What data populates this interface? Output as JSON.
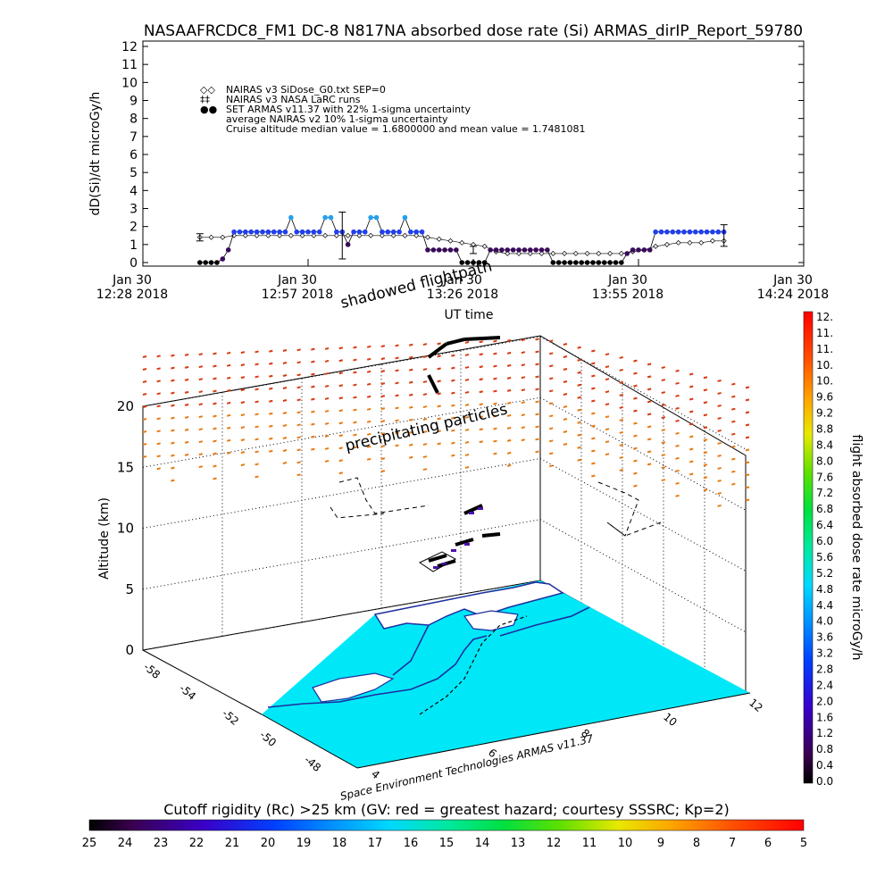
{
  "title": "NASAAFRCDC8_FM1 DC-8   N817NA absorbed dose rate (Si) ARMAS_dirIP_Report_59780",
  "chart_data": [
    {
      "type": "scatter",
      "ylabel": "dD(Si)/dt microGy/h",
      "xlabel": "UT time",
      "ylim": [
        0,
        12
      ],
      "yticks": [
        "0",
        "1",
        "2",
        "3",
        "4",
        "5",
        "6",
        "7",
        "8",
        "9",
        "10",
        "11",
        "12"
      ],
      "xticks": [
        {
          "top": "Jan 30",
          "bottom": "12:28 2018"
        },
        {
          "top": "Jan 30",
          "bottom": "12:57 2018"
        },
        {
          "top": "Jan 30",
          "bottom": "13:26 2018"
        },
        {
          "top": "Jan 30",
          "bottom": "13:55 2018"
        },
        {
          "top": "Jan 30",
          "bottom": "14:24 2018"
        }
      ],
      "xlim_minutes": [
        0,
        116
      ],
      "legend": [
        {
          "symbol": "◇◇",
          "text": "NAIRAS v3 SiDose_G0.txt SEP=0"
        },
        {
          "symbol": "‡‡",
          "text": "NAIRAS v3 NASA LaRC runs"
        },
        {
          "symbol": "●●",
          "text": "SET ARMAS v11.37 with 22% 1-sigma uncertainty"
        },
        {
          "symbol": "",
          "text": "average NAIRAS v2 10% 1-sigma uncertainty"
        },
        {
          "symbol": "",
          "text": "Cruise altitude median value = 1.6800000 and mean value = 1.7481081"
        }
      ],
      "series": [
        {
          "name": "NAIRAS v3 SiDose_G0.txt SEP=0",
          "x": [
            10,
            12,
            14,
            16,
            18,
            20,
            22,
            24,
            26,
            28,
            30,
            32,
            34,
            36,
            38,
            40,
            42,
            44,
            46,
            48,
            50,
            52,
            54,
            56,
            58,
            60,
            62,
            64,
            66,
            68,
            70,
            72,
            74,
            76,
            78,
            80,
            82,
            84,
            86,
            88,
            90,
            92,
            94,
            96,
            98,
            100,
            102
          ],
          "values": [
            1.4,
            1.4,
            1.4,
            1.5,
            1.5,
            1.5,
            1.5,
            1.5,
            1.5,
            1.5,
            1.5,
            1.5,
            1.5,
            1.5,
            1.5,
            1.5,
            1.5,
            1.5,
            1.5,
            1.5,
            1.4,
            1.3,
            1.2,
            1.1,
            1.0,
            0.9,
            0.6,
            0.5,
            0.5,
            0.5,
            0.5,
            0.5,
            0.5,
            0.5,
            0.5,
            0.5,
            0.5,
            0.5,
            0.6,
            0.7,
            0.9,
            1.0,
            1.1,
            1.1,
            1.1,
            1.2,
            1.2
          ]
        },
        {
          "name": "SET ARMAS v11.37",
          "x": [
            10,
            11,
            12,
            13,
            14,
            15,
            16,
            17,
            18,
            19,
            20,
            21,
            22,
            23,
            24,
            25,
            26,
            27,
            28,
            29,
            30,
            31,
            32,
            33,
            34,
            35,
            36,
            37,
            38,
            39,
            40,
            41,
            42,
            43,
            44,
            45,
            46,
            47,
            48,
            49,
            50,
            51,
            52,
            53,
            54,
            55,
            56,
            57,
            58,
            59,
            60,
            61,
            62,
            63,
            64,
            65,
            66,
            67,
            68,
            69,
            70,
            71,
            72,
            73,
            74,
            75,
            76,
            77,
            78,
            79,
            80,
            81,
            82,
            83,
            84,
            85,
            86,
            87,
            88,
            89,
            90,
            91,
            92,
            93,
            94,
            95,
            96,
            97,
            98,
            99,
            100,
            101,
            102
          ],
          "values": [
            0,
            0,
            0,
            0,
            0.2,
            0.7,
            1.7,
            1.7,
            1.7,
            1.7,
            1.7,
            1.7,
            1.7,
            1.7,
            1.7,
            1.7,
            2.5,
            1.7,
            1.7,
            1.7,
            1.7,
            1.7,
            2.5,
            2.5,
            1.7,
            1.7,
            1.0,
            1.7,
            1.7,
            1.7,
            2.5,
            2.5,
            1.7,
            1.7,
            1.7,
            1.7,
            2.5,
            1.7,
            1.7,
            1.7,
            0.7,
            0.7,
            0.7,
            0.7,
            0.7,
            0.7,
            0.0,
            0.0,
            0.0,
            0.0,
            0.0,
            0.7,
            0.7,
            0.7,
            0.7,
            0.7,
            0.7,
            0.7,
            0.7,
            0.7,
            0.7,
            0.7,
            0.0,
            0.0,
            0.0,
            0.0,
            0.0,
            0.0,
            0.0,
            0.0,
            0.0,
            0.0,
            0.0,
            0.0,
            0.0,
            0.5,
            0.7,
            0.7,
            0.7,
            0.7,
            1.7,
            1.7,
            1.7,
            1.7,
            1.7,
            1.7,
            1.7,
            1.7,
            1.7,
            1.7,
            1.7,
            1.7,
            1.7
          ]
        }
      ],
      "error_bars": [
        {
          "x": 10,
          "y": 1.4,
          "err": 0.2
        },
        {
          "x": 35,
          "y": 1.5,
          "err": 1.3
        },
        {
          "x": 58,
          "y": 0.7,
          "err": 0.2
        },
        {
          "x": 102,
          "y": 1.5,
          "err": 0.6
        }
      ]
    },
    {
      "type": "scatter3d",
      "zlabel": "Altitude (km)",
      "zticks": [
        "0",
        "5",
        "10",
        "15",
        "20"
      ],
      "annotations": [
        "shadowed flightpath",
        "precipitating particles",
        "Space Environment Technologies ARMAS v11.37"
      ],
      "x_ticks_left": [
        "-58",
        "-54",
        "-52",
        "-50",
        "-48"
      ],
      "x_ticks_bottom": [
        "4",
        "6",
        "8",
        "10",
        "12"
      ]
    }
  ],
  "colorbar_right": {
    "label": "flight absorbed dose rate microGy/h",
    "ticks": [
      "12.",
      "11.",
      "11.",
      "10.",
      "10.",
      "9.6",
      "9.2",
      "8.8",
      "8.4",
      "8.0",
      "7.6",
      "7.2",
      "6.8",
      "6.4",
      "6.0",
      "5.6",
      "5.2",
      "4.8",
      "4.4",
      "4.0",
      "3.6",
      "3.2",
      "2.8",
      "2.4",
      "2.0",
      "1.6",
      "1.2",
      "0.8",
      "0.4",
      "0.0"
    ]
  },
  "colorbar_bottom": {
    "label": "Cutoff rigidity (Rc) >25 km (GV: red = greatest hazard; courtesy SSSRC; Kp=2)",
    "ticks": [
      "25",
      "24",
      "23",
      "22",
      "21",
      "20",
      "19",
      "18",
      "17",
      "16",
      "15",
      "14",
      "13",
      "12",
      "11",
      "10",
      "9",
      "8",
      "7",
      "6",
      "5"
    ]
  },
  "colors": {
    "armas_point": "#1f3ff0",
    "armas_high": "#25a0f0",
    "low_dose": "#3a0a5a",
    "ocean": "#00e8f8",
    "land": "#ffffff",
    "coast": "#1e2fa0",
    "curtain_red": "#d83a10",
    "curtain_orange": "#e87a10"
  }
}
